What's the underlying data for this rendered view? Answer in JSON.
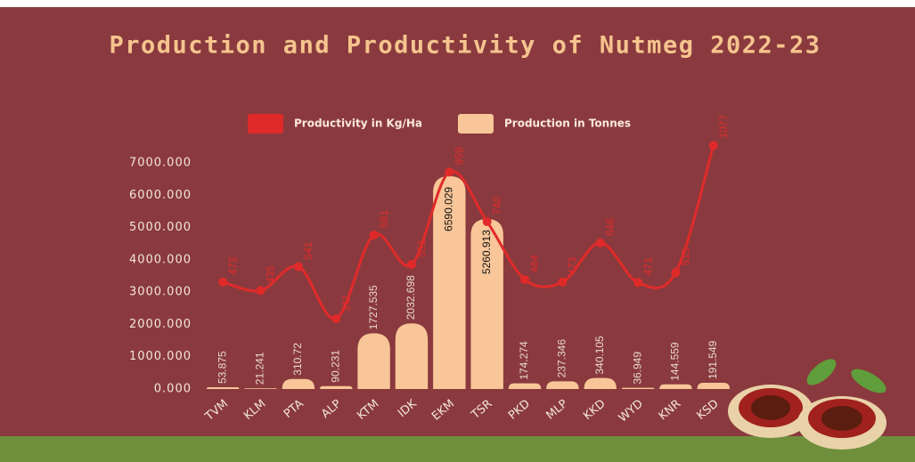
{
  "chart_data": {
    "type": "bar",
    "title": "Production and Productivity of Nutmeg  2022-23",
    "categories": [
      "TVM",
      "KLM",
      "PTA",
      "ALP",
      "KTM",
      "IDK",
      "EKM",
      "TSR",
      "PKD",
      "MLP",
      "KKD",
      "WYD",
      "KNR",
      "KSD"
    ],
    "series": [
      {
        "name": "Productivity in Kg/Ha",
        "type": "line",
        "axis": "y2",
        "color": "#e02a2a",
        "values": [
          473,
          435,
          541,
          311,
          681,
          551,
          959,
          740,
          484,
          473,
          646,
          471,
          515,
          1077
        ]
      },
      {
        "name": "Production in Tonnes",
        "type": "bar",
        "color": "#f8c698",
        "values": [
          53.875,
          21.241,
          310.72,
          90.231,
          1727.535,
          2032.698,
          6590.029,
          5260.913,
          174.274,
          237.346,
          340.105,
          36.949,
          144.559,
          191.549
        ]
      }
    ],
    "ylim": [
      0,
      7000
    ],
    "yticks": [
      {
        "value": 0,
        "label": "0.000"
      },
      {
        "value": 1000,
        "label": "1000.000"
      },
      {
        "value": 2000,
        "label": "2000.000"
      },
      {
        "value": 3000,
        "label": "3000.000"
      },
      {
        "value": 4000,
        "label": "4000.000"
      },
      {
        "value": 5000,
        "label": "5000.000"
      },
      {
        "value": 6000,
        "label": "6000.000"
      },
      {
        "value": 7000,
        "label": "7000.000"
      }
    ],
    "y2lim": [
      0,
      1000
    ],
    "grid": false,
    "legend": "top"
  }
}
